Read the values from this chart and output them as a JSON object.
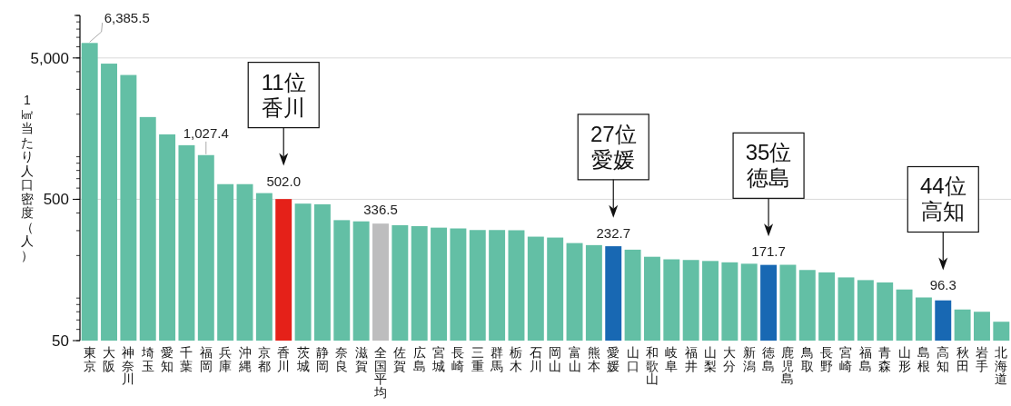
{
  "chart_data": {
    "type": "bar",
    "ylabel": "1㎢当たり人口密度（人）",
    "log": "y",
    "grid": "y",
    "ylim": [
      50,
      10000
    ],
    "yticks": [
      {
        "value": 50,
        "label": "50"
      },
      {
        "value": 500,
        "label": "500"
      },
      {
        "value": 5000,
        "label": "5,000"
      }
    ],
    "categories": [
      "東京",
      "大阪",
      "神奈川",
      "埼玉",
      "愛知",
      "千葉",
      "福岡",
      "兵庫",
      "沖縄",
      "京都",
      "香川",
      "茨城",
      "静岡",
      "奈良",
      "滋賀",
      "全国平均",
      "佐賀",
      "広島",
      "宮城",
      "長崎",
      "三重",
      "群馬",
      "栃木",
      "石川",
      "岡山",
      "富山",
      "熊本",
      "愛媛",
      "山口",
      "和歌山",
      "岐阜",
      "福井",
      "山梨",
      "大分",
      "新潟",
      "徳島",
      "鹿児島",
      "鳥取",
      "長野",
      "宮崎",
      "福島",
      "青森",
      "山形",
      "島根",
      "高知",
      "秋田",
      "岩手",
      "北海道"
    ],
    "values": [
      6385.5,
      4560,
      3790,
      1910,
      1440,
      1207,
      1027.4,
      640,
      640,
      553,
      502.0,
      466,
      461,
      356,
      349,
      336.5,
      328,
      323,
      315,
      311,
      303,
      303,
      302,
      272,
      268,
      245,
      237,
      232.7,
      220,
      196,
      188,
      186,
      183,
      179,
      175,
      171.7,
      172,
      158,
      152,
      140,
      134,
      129,
      115,
      101,
      96.3,
      83,
      80,
      68
    ],
    "colors": [
      "#63bfa5",
      "#63bfa5",
      "#63bfa5",
      "#63bfa5",
      "#63bfa5",
      "#63bfa5",
      "#63bfa5",
      "#63bfa5",
      "#63bfa5",
      "#63bfa5",
      "#e52119",
      "#63bfa5",
      "#63bfa5",
      "#63bfa5",
      "#63bfa5",
      "#bdbdbe",
      "#63bfa5",
      "#63bfa5",
      "#63bfa5",
      "#63bfa5",
      "#63bfa5",
      "#63bfa5",
      "#63bfa5",
      "#63bfa5",
      "#63bfa5",
      "#63bfa5",
      "#63bfa5",
      "#1868b3",
      "#63bfa5",
      "#63bfa5",
      "#63bfa5",
      "#63bfa5",
      "#63bfa5",
      "#63bfa5",
      "#63bfa5",
      "#1868b3",
      "#63bfa5",
      "#63bfa5",
      "#63bfa5",
      "#63bfa5",
      "#63bfa5",
      "#63bfa5",
      "#63bfa5",
      "#63bfa5",
      "#1868b3",
      "#63bfa5",
      "#63bfa5",
      "#63bfa5"
    ],
    "value_labels": [
      "6,385.5",
      null,
      null,
      null,
      null,
      null,
      "1,027.4",
      null,
      null,
      null,
      "502.0",
      null,
      null,
      null,
      null,
      "336.5",
      null,
      null,
      null,
      null,
      null,
      null,
      null,
      null,
      null,
      null,
      null,
      "232.7",
      null,
      null,
      null,
      null,
      null,
      null,
      null,
      "171.7",
      null,
      null,
      null,
      null,
      null,
      null,
      null,
      null,
      "96.3",
      null,
      null,
      null
    ],
    "annotations": [
      "11位香川",
      "27位愛媛",
      "35位徳島",
      "44位高知"
    ]
  }
}
